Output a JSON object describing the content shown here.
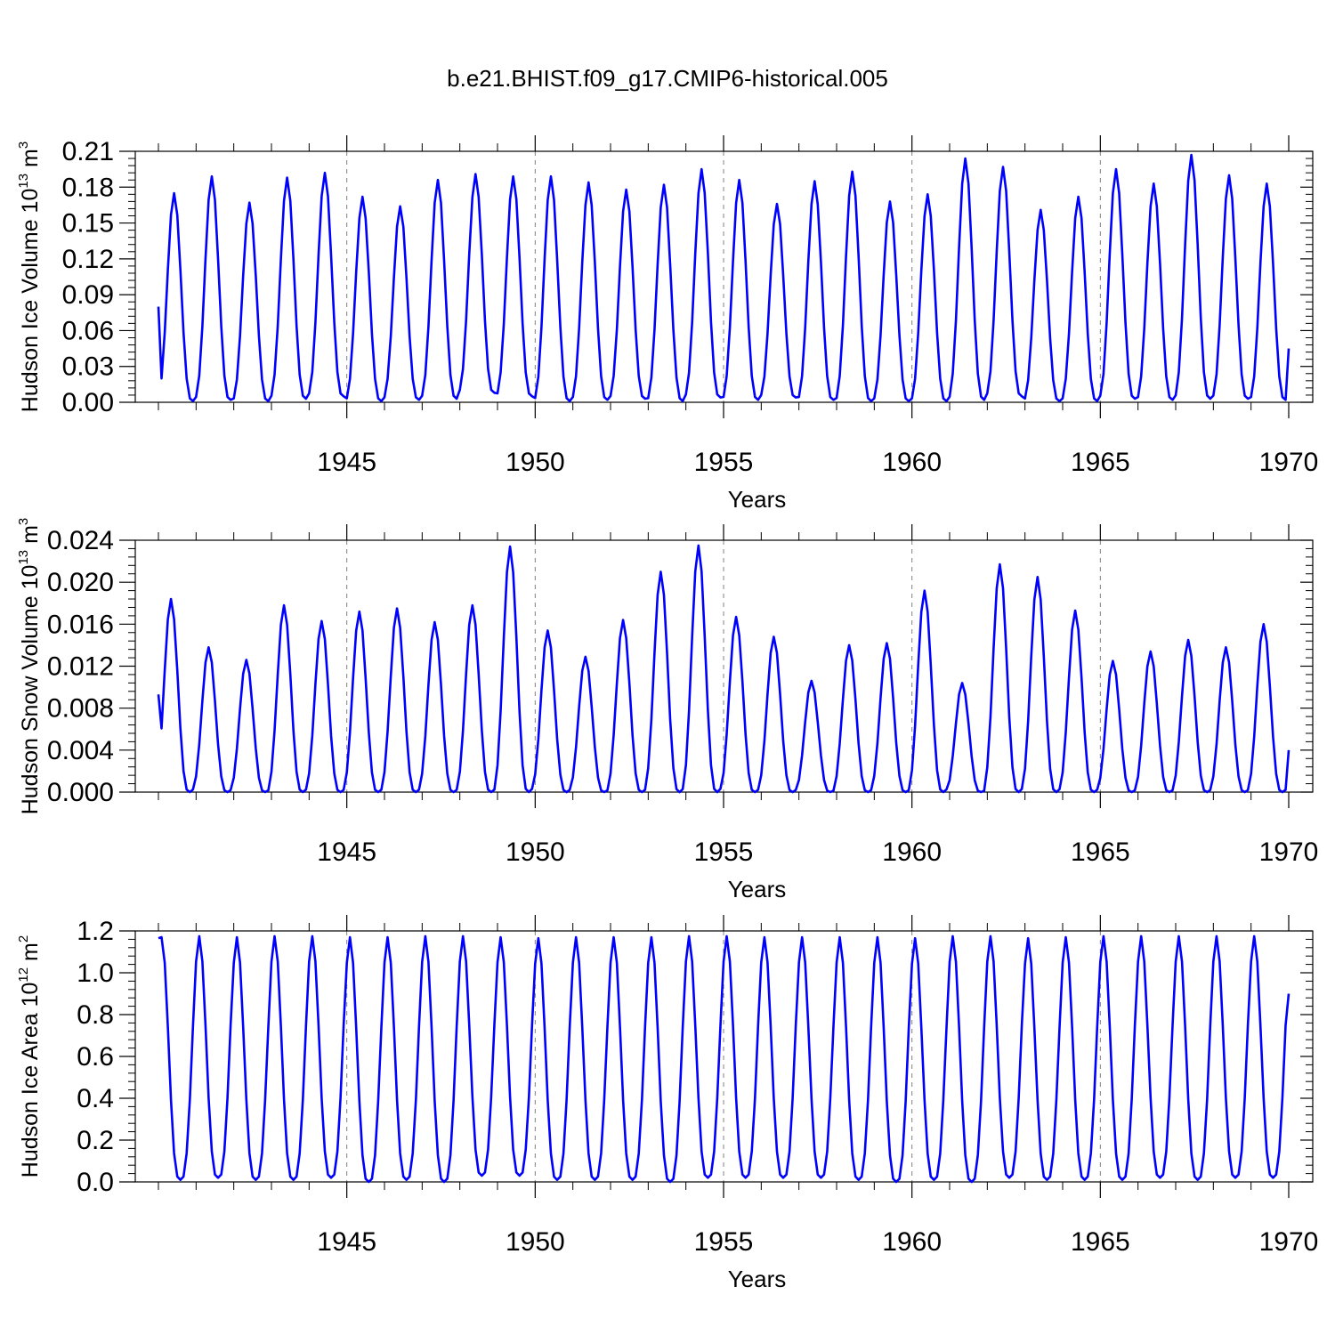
{
  "figure": {
    "title": "b.e21.BHIST.f09_g17.CMIP6-historical.005"
  },
  "style": {
    "line_color": "#0000ff",
    "axis_color": "#000000",
    "grid_color": "#808080"
  },
  "chart_data": [
    {
      "type": "line",
      "xlabel": "Years",
      "ylabel": {
        "prefix": "Hudson Ice Volume 10",
        "exp": "13",
        "unit": " m",
        "unit_exp": "3"
      },
      "xlim": [
        1940.0,
        1970.0
      ],
      "ylim": [
        0.0,
        0.21
      ],
      "x_ticks": [
        1945,
        1950,
        1955,
        1960,
        1965,
        1970
      ],
      "x_tick_labels": [
        "1945",
        "1950",
        "1955",
        "1960",
        "1965",
        "1970"
      ],
      "y_ticks": [
        0.0,
        0.03,
        0.06,
        0.09,
        0.12,
        0.15,
        0.18,
        0.21
      ],
      "y_tick_labels": [
        "0.00",
        "0.03",
        "0.06",
        "0.09",
        "0.12",
        "0.15",
        "0.18",
        "0.21"
      ],
      "vgrid": [
        1945,
        1950,
        1955,
        1960,
        1965
      ],
      "series": [
        {
          "x_start": 1940.0,
          "x_step": 0.0833333,
          "peak_month": 5,
          "annual_peaks": [
            0.175,
            0.189,
            0.167,
            0.188,
            0.192,
            0.172,
            0.164,
            0.186,
            0.191,
            0.189,
            0.189,
            0.184,
            0.178,
            0.182,
            0.195,
            0.186,
            0.166,
            0.185,
            0.193,
            0.168,
            0.174,
            0.204,
            0.197,
            0.161,
            0.172,
            0.195,
            0.183,
            0.207,
            0.19,
            0.183
          ],
          "annual_troughs": [
            0.001,
            0.002,
            0.001,
            0.003,
            0.005,
            0.001,
            0.002,
            0.003,
            0.008,
            0.005,
            0.001,
            0.002,
            0.003,
            0.001,
            0.004,
            0.002,
            0.004,
            0.002,
            0.001,
            0.001,
            0.001,
            0.002,
            0.005,
            0.001,
            0.001,
            0.003,
            0.002,
            0.003,
            0.003,
            0.002
          ],
          "start_value": 0.08,
          "end_value": 0.045
        }
      ]
    },
    {
      "type": "line",
      "xlabel": "Years",
      "ylabel": {
        "prefix": "Hudson Snow Volume 10",
        "exp": "13",
        "unit": " m",
        "unit_exp": "3"
      },
      "xlim": [
        1940.0,
        1970.0
      ],
      "ylim": [
        0.0,
        0.024
      ],
      "x_ticks": [
        1945,
        1950,
        1955,
        1960,
        1965,
        1970
      ],
      "x_tick_labels": [
        "1945",
        "1950",
        "1955",
        "1960",
        "1965",
        "1970"
      ],
      "y_ticks": [
        0.0,
        0.004,
        0.008,
        0.012,
        0.016,
        0.02,
        0.024
      ],
      "y_tick_labels": [
        "0.000",
        "0.004",
        "0.008",
        "0.012",
        "0.016",
        "0.020",
        "0.024"
      ],
      "vgrid": [
        1945,
        1950,
        1955,
        1960,
        1965
      ],
      "series": [
        {
          "x_start": 1940.0,
          "x_step": 0.0833333,
          "peak_month": 4,
          "annual_peaks": [
            0.0184,
            0.0138,
            0.0126,
            0.0178,
            0.0163,
            0.0172,
            0.0175,
            0.0162,
            0.0178,
            0.0234,
            0.0154,
            0.0129,
            0.0164,
            0.021,
            0.0235,
            0.0167,
            0.0148,
            0.0106,
            0.014,
            0.0142,
            0.0192,
            0.0104,
            0.0217,
            0.0205,
            0.0173,
            0.0125,
            0.0134,
            0.0145,
            0.0138,
            0.016
          ],
          "annual_troughs": [
            0.0,
            0.0,
            0.0,
            0.0,
            0.0,
            0.0,
            0.0,
            0.0,
            0.0,
            0.0,
            0.0,
            0.0,
            0.0,
            0.0,
            0.0,
            0.0,
            0.0,
            0.0,
            0.0,
            0.0,
            0.0,
            0.0,
            0.0,
            0.0,
            0.0,
            0.0,
            0.0,
            0.0,
            0.0,
            0.0
          ],
          "start_value": 0.0093,
          "end_value": 0.004
        }
      ]
    },
    {
      "type": "line",
      "xlabel": "Years",
      "ylabel": {
        "prefix": "Hudson Ice Area 10",
        "exp": "12",
        "unit": " m",
        "unit_exp": "2"
      },
      "xlim": [
        1940.0,
        1970.0
      ],
      "ylim": [
        0.0,
        1.2
      ],
      "x_ticks": [
        1945,
        1950,
        1955,
        1960,
        1965,
        1970
      ],
      "x_tick_labels": [
        "1945",
        "1950",
        "1955",
        "1960",
        "1965",
        "1970"
      ],
      "y_ticks": [
        0.0,
        0.2,
        0.4,
        0.6,
        0.8,
        1.0,
        1.2
      ],
      "y_tick_labels": [
        "0.0",
        "0.2",
        "0.4",
        "0.6",
        "0.8",
        "1.0",
        "1.2"
      ],
      "vgrid": [
        1945,
        1950,
        1955,
        1960,
        1965
      ],
      "series": [
        {
          "x_start": 1940.0,
          "x_step": 0.0833333,
          "peak_month": 1,
          "annual_peaks": [
            1.17,
            1.175,
            1.17,
            1.175,
            1.175,
            1.17,
            1.17,
            1.175,
            1.175,
            1.17,
            1.165,
            1.17,
            1.17,
            1.17,
            1.175,
            1.175,
            1.17,
            1.17,
            1.17,
            1.17,
            1.165,
            1.175,
            1.175,
            1.165,
            1.17,
            1.175,
            1.175,
            1.175,
            1.175,
            1.175
          ],
          "annual_troughs": [
            0.01,
            0.02,
            0.01,
            0.01,
            0.02,
            0.0,
            0.01,
            0.0,
            0.03,
            0.03,
            0.01,
            0.01,
            0.01,
            0.0,
            0.02,
            0.02,
            0.02,
            0.02,
            0.01,
            0.0,
            0.01,
            0.0,
            0.02,
            0.01,
            0.01,
            0.01,
            0.02,
            0.01,
            0.02,
            0.02
          ],
          "start_value": 1.165,
          "end_value": 0.9
        }
      ]
    }
  ]
}
